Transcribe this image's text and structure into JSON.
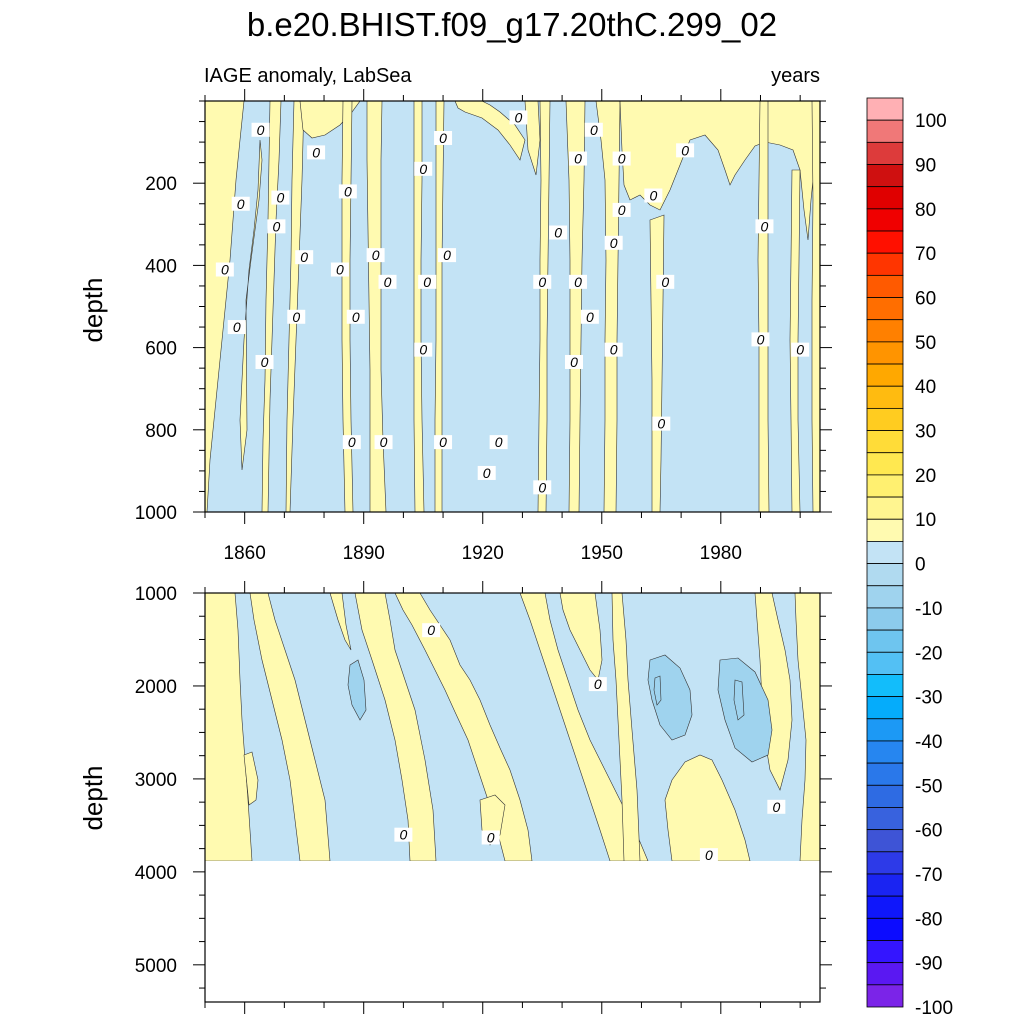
{
  "title": "b.e20.BHIST.f09_g17.20thC.299_02",
  "chart_data": {
    "type": "contour",
    "left_string": "IAGE anomaly, LabSea",
    "right_string": "years",
    "xlabel": "",
    "x_range": [
      1850,
      2005
    ],
    "x_ticks": [
      1860,
      1890,
      1920,
      1950,
      1980
    ],
    "panels": [
      {
        "name": "upper",
        "ylabel": "depth",
        "ylim": [
          0,
          1000
        ],
        "y_ticks": [
          200,
          400,
          600,
          800,
          1000
        ]
      },
      {
        "name": "lower",
        "ylabel": "depth",
        "ylim": [
          1000,
          5400
        ],
        "y_ticks": [
          1000,
          2000,
          3000,
          4000,
          5000
        ],
        "data_bottom": 3870
      }
    ],
    "colorbar": {
      "labels": [
        "100",
        "90",
        "80",
        "70",
        "60",
        "50",
        "40",
        "30",
        "20",
        "10",
        "0",
        "-10",
        "-20",
        "-30",
        "-40",
        "-50",
        "-60",
        "-70",
        "-80",
        "-90",
        "-100"
      ],
      "colors": [
        "#ffb0b4",
        "#f07878",
        "#dd3b3b",
        "#cf1010",
        "#e00000",
        "#f00000",
        "#ff1000",
        "#ff3500",
        "#ff5a00",
        "#ff6e00",
        "#ff8000",
        "#ff9400",
        "#ffa800",
        "#ffbb10",
        "#ffcc20",
        "#ffdc38",
        "#ffe850",
        "#fff070",
        "#fff590",
        "#fffab0",
        "#c3e3f5",
        "#b0daf0",
        "#9fd3ee",
        "#8ccbec",
        "#6ec5ef",
        "#53c0f4",
        "#12bdfb",
        "#05acfb",
        "#1c99f5",
        "#2686f0",
        "#2a78ea",
        "#2e6be3",
        "#3862de",
        "#3e54d6",
        "#2d3ae8",
        "#1a24f2",
        "#0f17fb",
        "#0c0cff",
        "#3415ff",
        "#5a18f2",
        "#7b24e8"
      ]
    },
    "contour_labels": [
      {
        "panel": 0,
        "x": 1864,
        "y": 70,
        "label": "0"
      },
      {
        "panel": 0,
        "x": 1878,
        "y": 125,
        "label": "0"
      },
      {
        "panel": 0,
        "x": 1886,
        "y": 220,
        "label": "0"
      },
      {
        "panel": 0,
        "x": 1859,
        "y": 250,
        "label": "0"
      },
      {
        "panel": 0,
        "x": 1869,
        "y": 235,
        "label": "0"
      },
      {
        "panel": 0,
        "x": 1868,
        "y": 305,
        "label": "0"
      },
      {
        "panel": 0,
        "x": 1855,
        "y": 410,
        "label": "0"
      },
      {
        "panel": 0,
        "x": 1875,
        "y": 380,
        "label": "0"
      },
      {
        "panel": 0,
        "x": 1884,
        "y": 410,
        "label": "0"
      },
      {
        "panel": 0,
        "x": 1858,
        "y": 550,
        "label": "0"
      },
      {
        "panel": 0,
        "x": 1873,
        "y": 525,
        "label": "0"
      },
      {
        "panel": 0,
        "x": 1888,
        "y": 525,
        "label": "0"
      },
      {
        "panel": 0,
        "x": 1865,
        "y": 635,
        "label": "0"
      },
      {
        "panel": 0,
        "x": 1893,
        "y": 375,
        "label": "0"
      },
      {
        "panel": 0,
        "x": 1896,
        "y": 440,
        "label": "0"
      },
      {
        "panel": 0,
        "x": 1905,
        "y": 165,
        "label": "0"
      },
      {
        "panel": 0,
        "x": 1910,
        "y": 90,
        "label": "0"
      },
      {
        "panel": 0,
        "x": 1911,
        "y": 375,
        "label": "0"
      },
      {
        "panel": 0,
        "x": 1906,
        "y": 440,
        "label": "0"
      },
      {
        "panel": 0,
        "x": 1905,
        "y": 605,
        "label": "0"
      },
      {
        "panel": 0,
        "x": 1887,
        "y": 830,
        "label": "0"
      },
      {
        "panel": 0,
        "x": 1895,
        "y": 830,
        "label": "0"
      },
      {
        "panel": 0,
        "x": 1910,
        "y": 830,
        "label": "0"
      },
      {
        "panel": 0,
        "x": 1924,
        "y": 830,
        "label": "0"
      },
      {
        "panel": 0,
        "x": 1921,
        "y": 905,
        "label": "0"
      },
      {
        "panel": 0,
        "x": 1929,
        "y": 40,
        "label": "0"
      },
      {
        "panel": 0,
        "x": 1939,
        "y": 320,
        "label": "0"
      },
      {
        "panel": 0,
        "x": 1935,
        "y": 440,
        "label": "0"
      },
      {
        "panel": 0,
        "x": 1935,
        "y": 940,
        "label": "0"
      },
      {
        "panel": 0,
        "x": 1944,
        "y": 140,
        "label": "0"
      },
      {
        "panel": 0,
        "x": 1948,
        "y": 70,
        "label": "0"
      },
      {
        "panel": 0,
        "x": 1955,
        "y": 140,
        "label": "0"
      },
      {
        "panel": 0,
        "x": 1955,
        "y": 265,
        "label": "0"
      },
      {
        "panel": 0,
        "x": 1953,
        "y": 345,
        "label": "0"
      },
      {
        "panel": 0,
        "x": 1944,
        "y": 440,
        "label": "0"
      },
      {
        "panel": 0,
        "x": 1947,
        "y": 525,
        "label": "0"
      },
      {
        "panel": 0,
        "x": 1943,
        "y": 635,
        "label": "0"
      },
      {
        "panel": 0,
        "x": 1953,
        "y": 605,
        "label": "0"
      },
      {
        "panel": 0,
        "x": 1963,
        "y": 230,
        "label": "0"
      },
      {
        "panel": 0,
        "x": 1966,
        "y": 440,
        "label": "0"
      },
      {
        "panel": 0,
        "x": 1965,
        "y": 785,
        "label": "0"
      },
      {
        "panel": 0,
        "x": 1971,
        "y": 120,
        "label": "0"
      },
      {
        "panel": 0,
        "x": 1991,
        "y": 305,
        "label": "0"
      },
      {
        "panel": 0,
        "x": 1990,
        "y": 580,
        "label": "0"
      },
      {
        "panel": 0,
        "x": 2000,
        "y": 605,
        "label": "0"
      },
      {
        "panel": 1,
        "x": 1907,
        "y": 1400,
        "label": "0"
      },
      {
        "panel": 1,
        "x": 1949,
        "y": 1980,
        "label": "0"
      },
      {
        "panel": 1,
        "x": 1994,
        "y": 3300,
        "label": "0"
      },
      {
        "panel": 1,
        "x": 1900,
        "y": 3600,
        "label": "0"
      },
      {
        "panel": 1,
        "x": 1922,
        "y": 3630,
        "label": "0"
      },
      {
        "panel": 1,
        "x": 1977,
        "y": 3820,
        "label": "0"
      }
    ]
  }
}
